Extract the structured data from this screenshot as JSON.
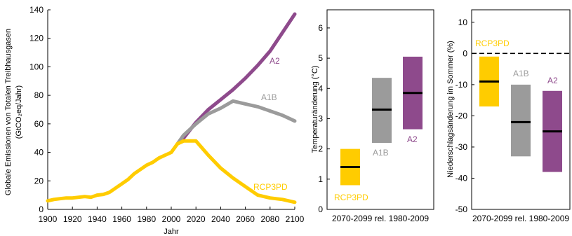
{
  "colors": {
    "A2": "#8E4A8C",
    "A1B": "#9B9B9B",
    "RCP3PD": "#FFCC00",
    "axis": "#000000",
    "median": "#000000"
  },
  "chart_data": [
    {
      "type": "line",
      "title": "",
      "xlabel": "Jahr",
      "ylabel_line1": "Globale Emissionen von Totalen Treibhausgasen",
      "ylabel_line2": "(GtCO₂eq/Jahr)",
      "xlim": [
        1900,
        2100
      ],
      "ylim": [
        0,
        140
      ],
      "xticks": [
        "1900",
        "1920",
        "1940",
        "1960",
        "1980",
        "2000",
        "2020",
        "2040",
        "2060",
        "2080",
        "2100"
      ],
      "yticks": [
        "0",
        "20",
        "40",
        "60",
        "80",
        "100",
        "120",
        "140"
      ],
      "historical": {
        "x": [
          1900,
          1905,
          1910,
          1915,
          1920,
          1925,
          1930,
          1935,
          1940,
          1945,
          1950,
          1955,
          1960,
          1965,
          1970,
          1975,
          1980,
          1985,
          1990,
          1995,
          2000,
          2005
        ],
        "y": [
          6,
          7,
          7.5,
          8,
          8,
          8.5,
          9,
          8.5,
          10,
          10.5,
          12,
          15,
          18,
          21,
          25,
          28,
          31,
          33,
          36,
          38,
          40,
          46
        ]
      },
      "series": [
        {
          "name": "A2",
          "x": [
            2005,
            2010,
            2020,
            2030,
            2040,
            2050,
            2060,
            2070,
            2080,
            2090,
            2100
          ],
          "y": [
            46,
            50,
            61,
            70,
            77,
            84,
            92,
            101,
            111,
            124,
            137
          ]
        },
        {
          "name": "A1B",
          "x": [
            2005,
            2010,
            2020,
            2030,
            2040,
            2050,
            2060,
            2070,
            2080,
            2090,
            2100
          ],
          "y": [
            46,
            52,
            60,
            67,
            71,
            76,
            74,
            72,
            69,
            66,
            62
          ]
        },
        {
          "name": "RCP3PD",
          "x": [
            2005,
            2010,
            2020,
            2030,
            2040,
            2050,
            2060,
            2070,
            2080,
            2090,
            2100
          ],
          "y": [
            46,
            48,
            48,
            38,
            29,
            22,
            16,
            10,
            8,
            7,
            5
          ]
        }
      ]
    },
    {
      "type": "bar",
      "subtype": "range",
      "ylabel": "Temperaturänderung (°C)",
      "xlabel": "2070-2099 rel. 1980-2009",
      "ylim": [
        0,
        6.6
      ],
      "yticks": [
        "0",
        "1",
        "2",
        "3",
        "4",
        "5",
        "6"
      ],
      "series": [
        {
          "name": "RCP3PD",
          "low": 0.8,
          "high": 2.0,
          "median": 1.4
        },
        {
          "name": "A1B",
          "low": 2.2,
          "high": 4.35,
          "median": 3.3
        },
        {
          "name": "A2",
          "low": 2.65,
          "high": 5.05,
          "median": 3.85
        }
      ]
    },
    {
      "type": "bar",
      "subtype": "range",
      "ylabel": "Niederschlagsänderung im Sommer (%)",
      "xlabel": "2070-2099 rel. 1980-2009",
      "ylim": [
        -50,
        14
      ],
      "yticks": [
        "10",
        "0",
        "-10",
        "-20",
        "-30",
        "-40",
        "-50"
      ],
      "series": [
        {
          "name": "RCP3PD",
          "low": -17,
          "high": -1,
          "median": -9
        },
        {
          "name": "A1B",
          "low": -33,
          "high": -10,
          "median": -22
        },
        {
          "name": "A2",
          "low": -38,
          "high": -12,
          "median": -25
        }
      ]
    }
  ]
}
